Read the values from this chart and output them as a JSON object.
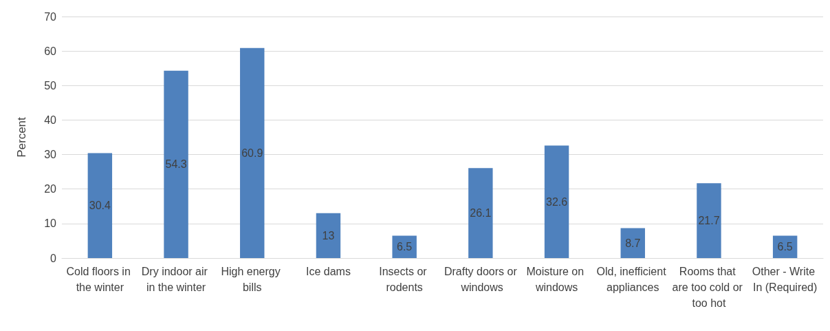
{
  "chart_data": {
    "type": "bar",
    "ylabel": "Percent",
    "categories": [
      "Cold floors in the winter",
      "Dry indoor air in the winter",
      "High energy bills",
      "Ice dams",
      "Insects or rodents",
      "Drafty doors or windows",
      "Moisture on windows",
      "Old, inefficient appliances",
      "Rooms that are too cold or too hot",
      "Other - Write In (Required)"
    ],
    "values": [
      30.4,
      54.3,
      60.9,
      13,
      6.5,
      26.1,
      32.6,
      8.7,
      21.7,
      6.5
    ],
    "color": "#4f81bd",
    "ylim": [
      0,
      70
    ],
    "yticks": [
      0,
      10,
      20,
      30,
      40,
      50,
      60,
      70
    ],
    "grid": "y",
    "data_labels": true
  }
}
